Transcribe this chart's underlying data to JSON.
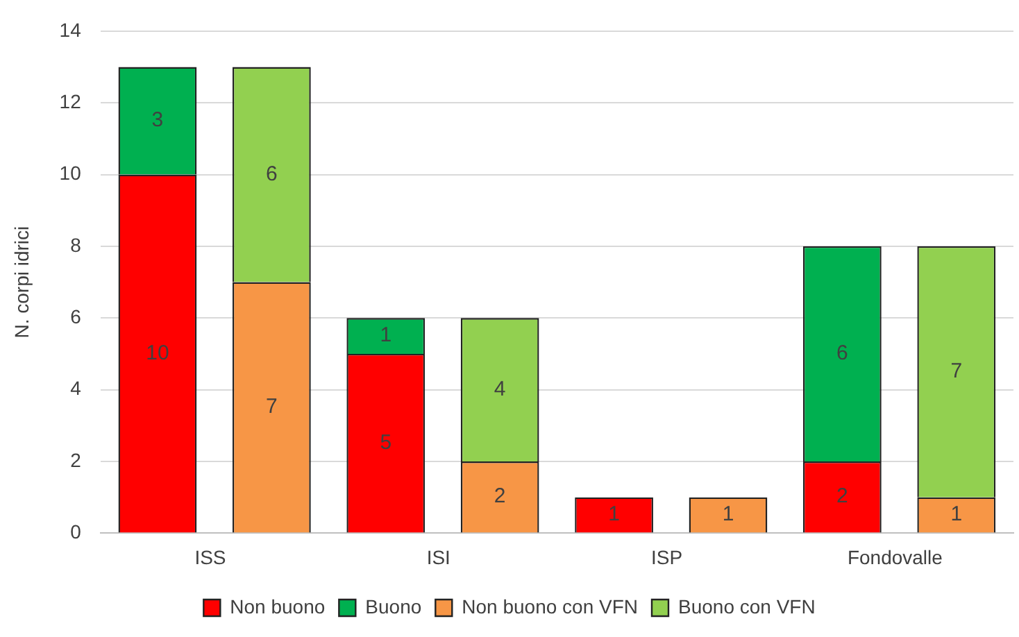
{
  "chart_data": {
    "type": "bar",
    "ylabel": "N. corpi idrici",
    "categories": [
      "ISS",
      null,
      "ISI",
      null,
      "ISP",
      null,
      "Fondovalle",
      null
    ],
    "stacked": true,
    "series": [
      {
        "name": "Non buono",
        "color": "#ff0000",
        "values": [
          10,
          null,
          5,
          null,
          1,
          null,
          2,
          null
        ],
        "value_labels": [
          "10",
          null,
          "5",
          null,
          "1",
          null,
          "2",
          null
        ]
      },
      {
        "name": "Buono",
        "color": "#00b050",
        "values": [
          3,
          null,
          1,
          null,
          0,
          null,
          6,
          null
        ],
        "value_labels": [
          "3",
          null,
          "1",
          null,
          null,
          null,
          "6",
          null
        ]
      },
      {
        "name": "Non buono con VFN",
        "color": "#f79646",
        "values": [
          null,
          7,
          null,
          2,
          null,
          1,
          null,
          1
        ],
        "value_labels": [
          null,
          "7",
          null,
          "2",
          null,
          "1",
          null,
          "1"
        ]
      },
      {
        "name": "Buono con VFN",
        "color": "#92d050",
        "values": [
          null,
          6,
          null,
          4,
          null,
          0,
          null,
          7
        ],
        "value_labels": [
          null,
          "6",
          null,
          "4",
          null,
          null,
          null,
          "7"
        ]
      }
    ],
    "ylim": [
      0,
      14
    ],
    "yticks": [
      0,
      2,
      4,
      6,
      8,
      10,
      12,
      14
    ],
    "grid": "y",
    "legend": "bottom"
  }
}
